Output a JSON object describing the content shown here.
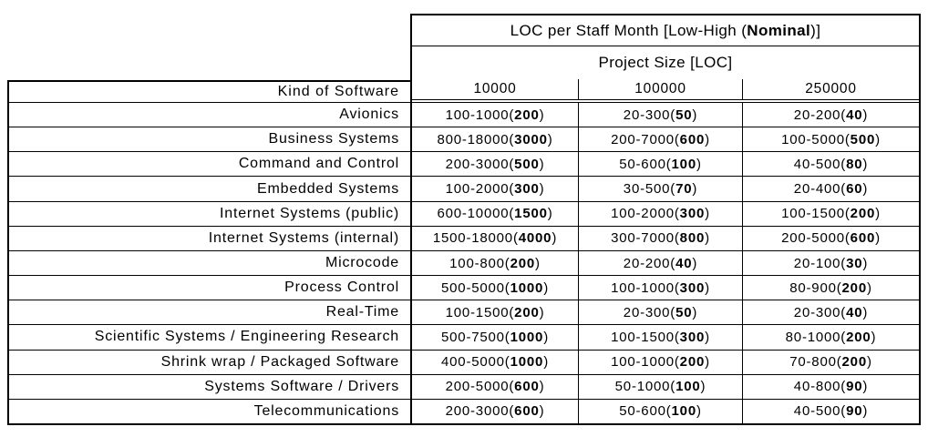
{
  "colors": {
    "border": "#000000",
    "text": "#000000",
    "background": "#ffffff"
  },
  "table": {
    "title_prefix": "LOC per Staff Month [Low-High (",
    "title_bold": "Nominal",
    "title_suffix": ")]",
    "subtitle": "Project Size [LOC]",
    "kind_of_software_header": "Kind of Software",
    "size_columns": [
      "10000",
      "100000",
      "250000"
    ],
    "rows": [
      {
        "kind": "Avionics",
        "cells": [
          {
            "low_high": "100-1000",
            "nominal": "200"
          },
          {
            "low_high": "20-300",
            "nominal": "50"
          },
          {
            "low_high": "20-200",
            "nominal": "40"
          }
        ]
      },
      {
        "kind": "Business Systems",
        "cells": [
          {
            "low_high": "800-18000",
            "nominal": "3000"
          },
          {
            "low_high": "200-7000",
            "nominal": "600"
          },
          {
            "low_high": "100-5000",
            "nominal": "500"
          }
        ]
      },
      {
        "kind": "Command and Control",
        "cells": [
          {
            "low_high": "200-3000",
            "nominal": "500"
          },
          {
            "low_high": "50-600",
            "nominal": "100"
          },
          {
            "low_high": "40-500",
            "nominal": "80"
          }
        ]
      },
      {
        "kind": "Embedded Systems",
        "cells": [
          {
            "low_high": "100-2000",
            "nominal": "300"
          },
          {
            "low_high": "30-500",
            "nominal": "70"
          },
          {
            "low_high": "20-400",
            "nominal": "60"
          }
        ]
      },
      {
        "kind": "Internet Systems (public)",
        "cells": [
          {
            "low_high": "600-10000",
            "nominal": "1500"
          },
          {
            "low_high": "100-2000",
            "nominal": "300"
          },
          {
            "low_high": "100-1500",
            "nominal": "200"
          }
        ]
      },
      {
        "kind": "Internet Systems (internal)",
        "cells": [
          {
            "low_high": "1500-18000",
            "nominal": "4000"
          },
          {
            "low_high": "300-7000",
            "nominal": "800"
          },
          {
            "low_high": "200-5000",
            "nominal": "600"
          }
        ]
      },
      {
        "kind": "Microcode",
        "cells": [
          {
            "low_high": "100-800",
            "nominal": "200"
          },
          {
            "low_high": "20-200",
            "nominal": "40"
          },
          {
            "low_high": "20-100",
            "nominal": "30"
          }
        ]
      },
      {
        "kind": "Process Control",
        "cells": [
          {
            "low_high": "500-5000",
            "nominal": "1000"
          },
          {
            "low_high": "100-1000",
            "nominal": "300"
          },
          {
            "low_high": "80-900",
            "nominal": "200"
          }
        ]
      },
      {
        "kind": "Real-Time",
        "cells": [
          {
            "low_high": "100-1500",
            "nominal": "200"
          },
          {
            "low_high": "20-300",
            "nominal": "50"
          },
          {
            "low_high": "20-300",
            "nominal": "40"
          }
        ]
      },
      {
        "kind": "Scientific Systems / Engineering Research",
        "cells": [
          {
            "low_high": "500-7500",
            "nominal": "1000"
          },
          {
            "low_high": "100-1500",
            "nominal": "300"
          },
          {
            "low_high": "80-1000",
            "nominal": "200"
          }
        ]
      },
      {
        "kind": "Shrink wrap / Packaged Software",
        "cells": [
          {
            "low_high": "400-5000",
            "nominal": "1000"
          },
          {
            "low_high": "100-1000",
            "nominal": "200"
          },
          {
            "low_high": "70-800",
            "nominal": "200"
          }
        ]
      },
      {
        "kind": "Systems Software / Drivers",
        "cells": [
          {
            "low_high": "200-5000",
            "nominal": "600"
          },
          {
            "low_high": "50-1000",
            "nominal": "100"
          },
          {
            "low_high": "40-800",
            "nominal": "90"
          }
        ]
      },
      {
        "kind": "Telecommunications",
        "cells": [
          {
            "low_high": "200-3000",
            "nominal": "600"
          },
          {
            "low_high": "50-600",
            "nominal": "100"
          },
          {
            "low_high": "40-500",
            "nominal": "90"
          }
        ]
      }
    ]
  }
}
